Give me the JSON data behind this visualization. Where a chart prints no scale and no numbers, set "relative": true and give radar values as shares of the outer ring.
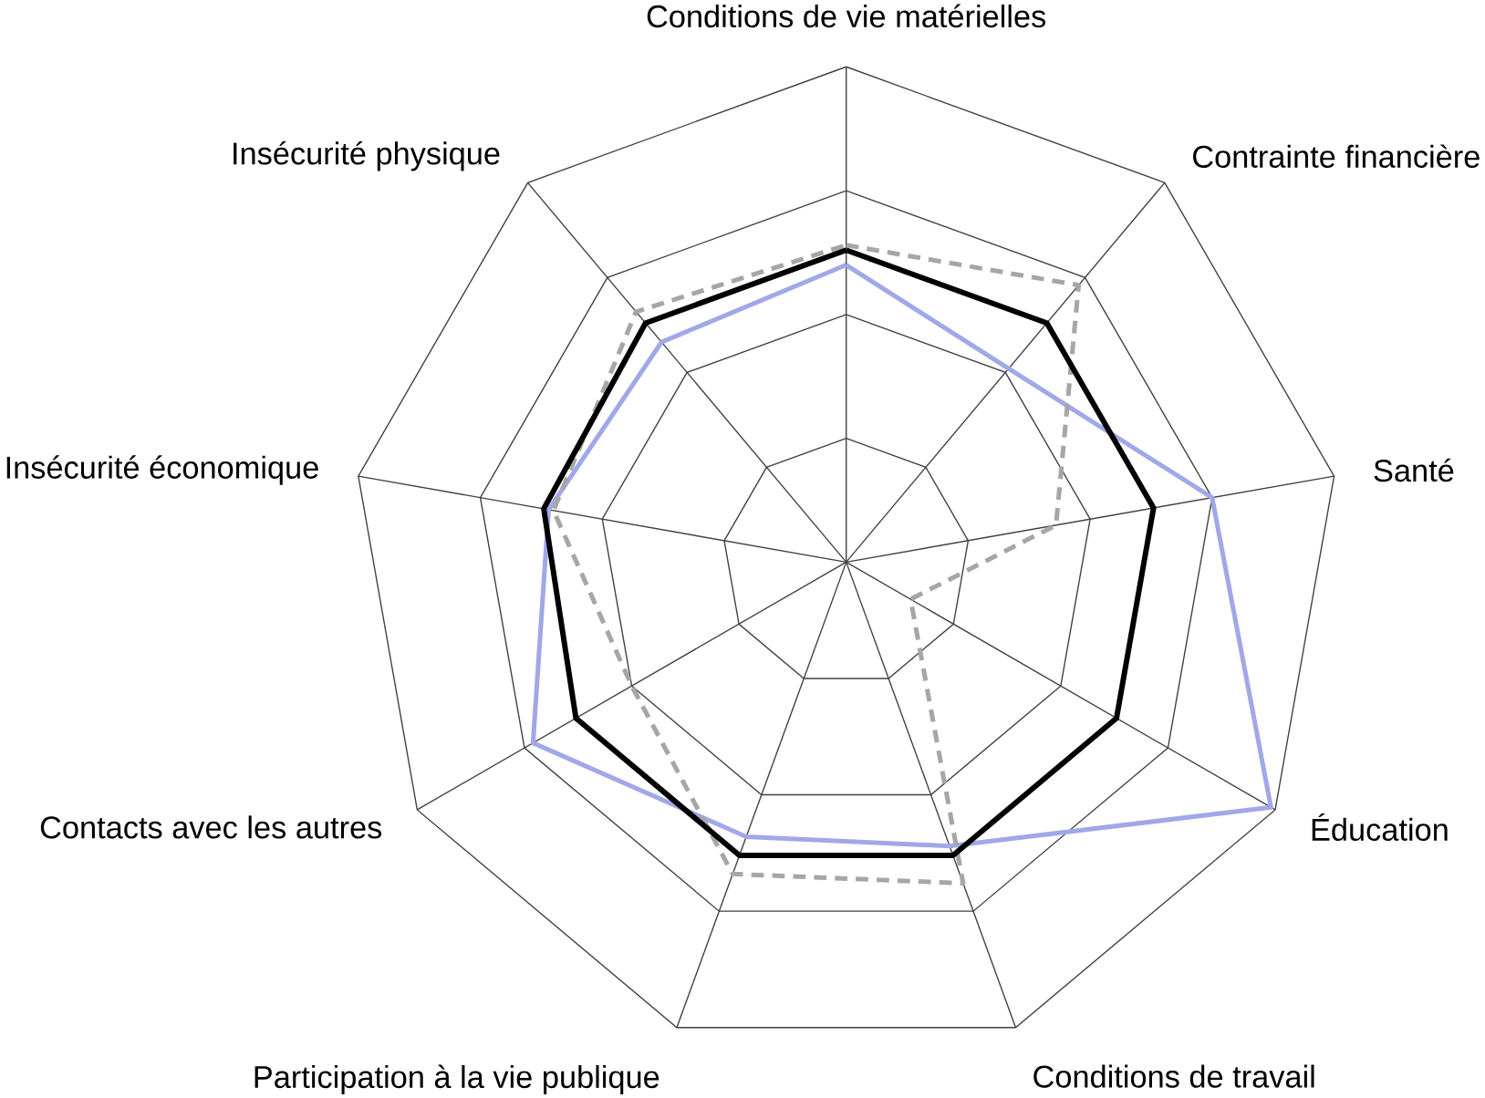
{
  "chart_data": {
    "type": "radar",
    "relative": true,
    "categories": [
      "Conditions de vie matérielles",
      "Contrainte financière",
      "Santé",
      "Éducation",
      "Conditions de travail",
      "Participation à la vie publique",
      "Contacts avec les autres",
      "Insécurité économique",
      "Insécurité physique"
    ],
    "series": [
      {
        "color": "#a0a8e8",
        "line_style": "solid",
        "values": [
          0.6,
          0.51,
          0.75,
          0.99,
          0.61,
          0.59,
          0.73,
          0.61,
          0.58
        ]
      },
      {
        "color": "#a6a6a6",
        "line_style": "dashed",
        "values": [
          0.64,
          0.73,
          0.43,
          0.15,
          0.69,
          0.67,
          0.5,
          0.6,
          0.66
        ]
      },
      {
        "color": "#000000",
        "line_style": "solid",
        "values": [
          0.63,
          0.63,
          0.63,
          0.63,
          0.63,
          0.63,
          0.63,
          0.62,
          0.63
        ]
      }
    ]
  }
}
